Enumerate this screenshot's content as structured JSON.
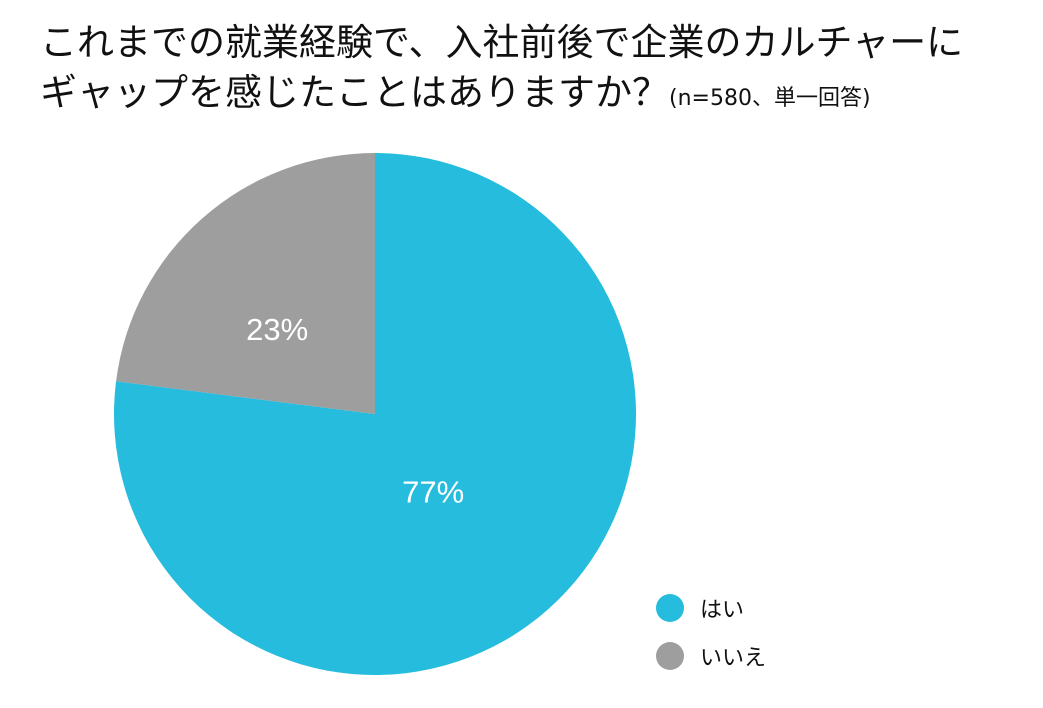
{
  "title": {
    "line1": "これまでの就業経験で、入社前後で企業のカルチャーに",
    "line2": "ギャップを感じたことはありますか？",
    "sample_note": "(n=580、単一回答)"
  },
  "chart_data": {
    "type": "pie",
    "title": "これまでの就業経験で、入社前後で企業のカルチャーにギャップを感じたことはありますか？",
    "subtitle": "(n=580、単一回答)",
    "categories": [
      "はい",
      "いいえ"
    ],
    "values": [
      77,
      23
    ],
    "data_labels": [
      "77%",
      "23%"
    ],
    "colors": [
      "#26BCDD",
      "#9E9E9E"
    ],
    "start_angle": "12 o'clock",
    "direction": "clockwise",
    "legend_position": "bottom-right"
  }
}
